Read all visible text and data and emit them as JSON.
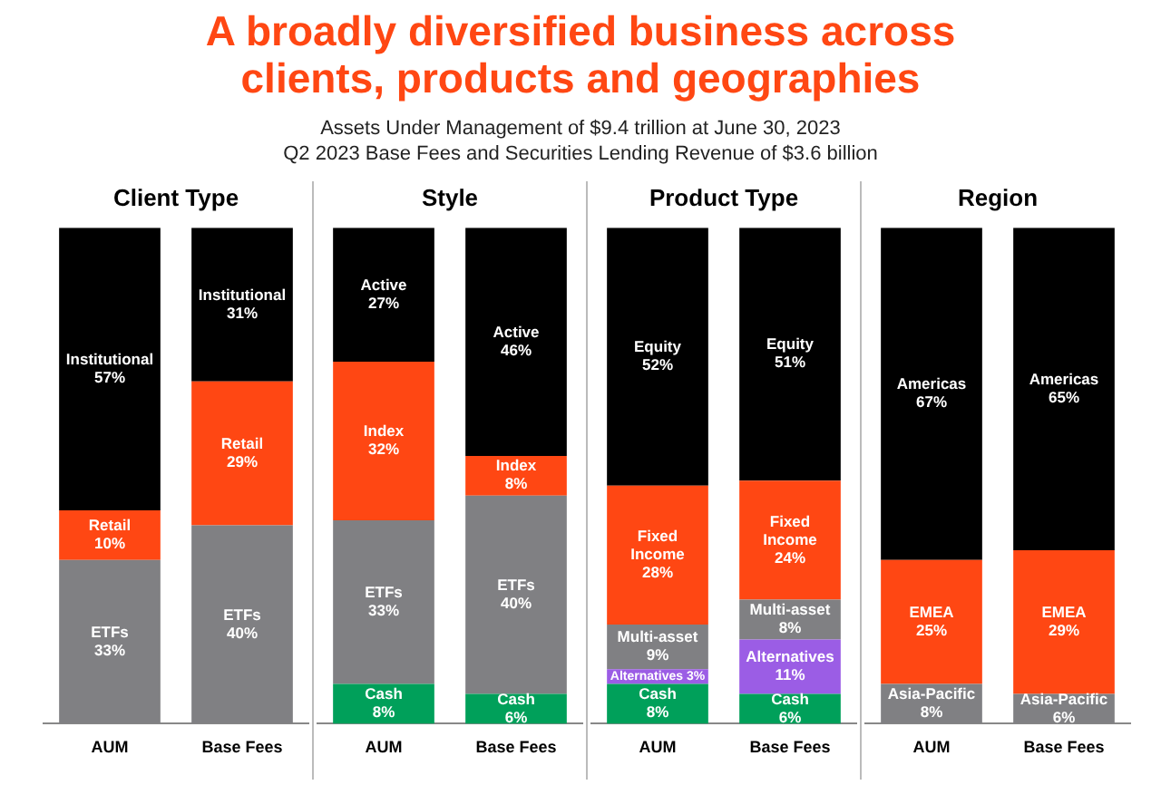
{
  "chart_data": [
    {
      "type": "other",
      "title": "A broadly diversified business across clients, products and geographies",
      "subtitle": "Assets Under Management of $9.4 trillion at June 30, 2023",
      "annotations": [
        "Q2 2023 Base Fees and Securities Lending Revenue of $3.6 billion"
      ]
    },
    {
      "type": "bar",
      "title": "Client Type",
      "stacked": true,
      "categories": [
        "AUM",
        "Base Fees"
      ],
      "series": [
        {
          "name": "ETFs",
          "color": "#808083",
          "values": [
            33,
            40
          ],
          "value_labels": [
            "33%",
            "40%"
          ]
        },
        {
          "name": "Retail",
          "color": "#ff4713",
          "values": [
            10,
            29
          ],
          "value_labels": [
            "10%",
            "29%"
          ]
        },
        {
          "name": "Institutional",
          "color": "#000000",
          "values": [
            57,
            31
          ],
          "value_labels": [
            "57%",
            "31%"
          ]
        }
      ]
    },
    {
      "type": "bar",
      "title": "Style",
      "stacked": true,
      "categories": [
        "AUM",
        "Base Fees"
      ],
      "series": [
        {
          "name": "Cash",
          "color": "#00a05a",
          "values": [
            8,
            6
          ],
          "value_labels": [
            "8%",
            "6%"
          ]
        },
        {
          "name": "ETFs",
          "color": "#808083",
          "values": [
            33,
            40
          ],
          "value_labels": [
            "33%",
            "40%"
          ]
        },
        {
          "name": "Index",
          "color": "#ff4713",
          "values": [
            32,
            8
          ],
          "value_labels": [
            "32%",
            "8%"
          ]
        },
        {
          "name": "Active",
          "color": "#000000",
          "values": [
            27,
            46
          ],
          "value_labels": [
            "27%",
            "46%"
          ]
        }
      ]
    },
    {
      "type": "bar",
      "title": "Product Type",
      "stacked": true,
      "categories": [
        "AUM",
        "Base Fees"
      ],
      "series": [
        {
          "name": "Cash",
          "color": "#00a05a",
          "values": [
            8,
            6
          ],
          "value_labels": [
            "8%",
            "6%"
          ]
        },
        {
          "name": "Alternatives",
          "color": "#9b5de5",
          "values": [
            3,
            11
          ],
          "value_labels": [
            "3%",
            "11%"
          ]
        },
        {
          "name": "Multi-asset",
          "color": "#808083",
          "values": [
            9,
            8
          ],
          "value_labels": [
            "9%",
            "8%"
          ]
        },
        {
          "name": "Fixed Income",
          "color": "#ff4713",
          "values": [
            28,
            24
          ],
          "value_labels": [
            "28%",
            "24%"
          ]
        },
        {
          "name": "Equity",
          "color": "#000000",
          "values": [
            52,
            51
          ],
          "value_labels": [
            "52%",
            "51%"
          ]
        }
      ]
    },
    {
      "type": "bar",
      "title": "Region",
      "stacked": true,
      "categories": [
        "AUM",
        "Base Fees"
      ],
      "series": [
        {
          "name": "Asia-Pacific",
          "color": "#808083",
          "values": [
            8,
            6
          ],
          "value_labels": [
            "8%",
            "6%"
          ]
        },
        {
          "name": "EMEA",
          "color": "#ff4713",
          "values": [
            25,
            29
          ],
          "value_labels": [
            "25%",
            "29%"
          ]
        },
        {
          "name": "Americas",
          "color": "#000000",
          "values": [
            67,
            65
          ],
          "value_labels": [
            "67%",
            "65%"
          ]
        }
      ]
    }
  ]
}
